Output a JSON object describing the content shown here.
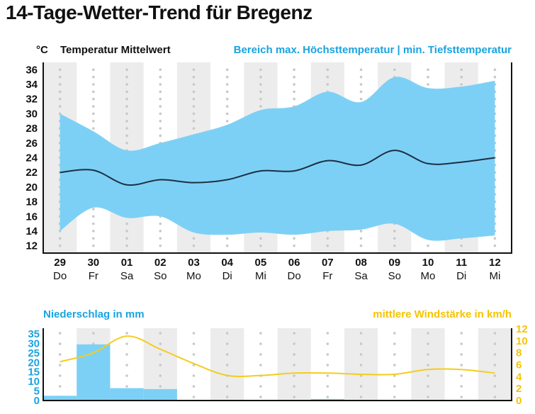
{
  "title": "14-Tage-Wetter-Trend für Bregenz",
  "colors": {
    "band": "#7dd0f5",
    "mean": "#1c2f43",
    "bars": "#7dd0f5",
    "wind": "#f5cc1e",
    "accent_blue": "#1aa3e0",
    "accent_yellow": "#f5c400",
    "stripe": "#ececec",
    "dot": "#c8c8c8"
  },
  "temperature_header": {
    "unit": "°C",
    "mean_label": "Temperatur Mittelwert",
    "range_label": "Bereich max. Höchsttemperatur | min. Tiefsttemperatur"
  },
  "bottom_header": {
    "precip_label": "Niederschlag in mm",
    "wind_label": "mittlere Windstärke in km/h"
  },
  "chart_data": [
    {
      "type": "area",
      "categories": [
        "29",
        "30",
        "01",
        "02",
        "03",
        "04",
        "05",
        "06",
        "07",
        "08",
        "09",
        "10",
        "11",
        "12"
      ],
      "weekdays": [
        "Do",
        "Fr",
        "Sa",
        "So",
        "Mo",
        "Di",
        "Mi",
        "Do",
        "Fr",
        "Sa",
        "So",
        "Mo",
        "Di",
        "Mi"
      ],
      "ylabel": "°C",
      "ylim": [
        11,
        37
      ],
      "yticks": [
        12,
        14,
        16,
        18,
        20,
        22,
        24,
        26,
        28,
        30,
        32,
        34,
        36
      ],
      "series": [
        {
          "name": "Bereich max. Höchsttemperatur | min. Tiefsttemperatur",
          "kind": "band",
          "high": [
            30,
            27.6,
            25,
            26,
            27.2,
            28.5,
            30.5,
            31,
            33,
            31.6,
            35,
            33.5,
            33.7,
            34.5
          ],
          "low": [
            14,
            17.2,
            15.8,
            16,
            13.8,
            13.5,
            13.8,
            13.5,
            14,
            14.2,
            15,
            12.8,
            13,
            13.4
          ]
        },
        {
          "name": "Temperatur Mittelwert",
          "kind": "line",
          "values": [
            22,
            22.3,
            20.3,
            21,
            20.6,
            21,
            22.2,
            22.2,
            23.6,
            23,
            25,
            23.2,
            23.4,
            24
          ]
        }
      ],
      "grid": true
    },
    {
      "type": "bar",
      "categories": [
        "29",
        "30",
        "01",
        "02",
        "03",
        "04",
        "05",
        "06",
        "07",
        "08",
        "09",
        "10",
        "11",
        "12"
      ],
      "y_left": {
        "label": "Niederschlag in mm",
        "ylim": [
          0,
          35
        ],
        "yticks": [
          0,
          5,
          10,
          15,
          20,
          25,
          30,
          35
        ]
      },
      "y_right": {
        "label": "mittlere Windstärke in km/h",
        "ylim": [
          0,
          12
        ],
        "yticks": [
          0,
          2,
          4,
          6,
          8,
          10,
          12
        ]
      },
      "series": [
        {
          "name": "Niederschlag in mm",
          "kind": "bar",
          "values": [
            2.5,
            29.5,
            6.5,
            6,
            0,
            0,
            0,
            0.3,
            0.8,
            0,
            0,
            0,
            0,
            0
          ]
        },
        {
          "name": "mittlere Windstärke in km/h",
          "kind": "line",
          "values": [
            6.5,
            8,
            10.8,
            8.6,
            6.2,
            4.2,
            4.2,
            4.6,
            4.6,
            4.4,
            4.4,
            5.2,
            5.2,
            4.6
          ]
        }
      ],
      "grid": true
    }
  ]
}
